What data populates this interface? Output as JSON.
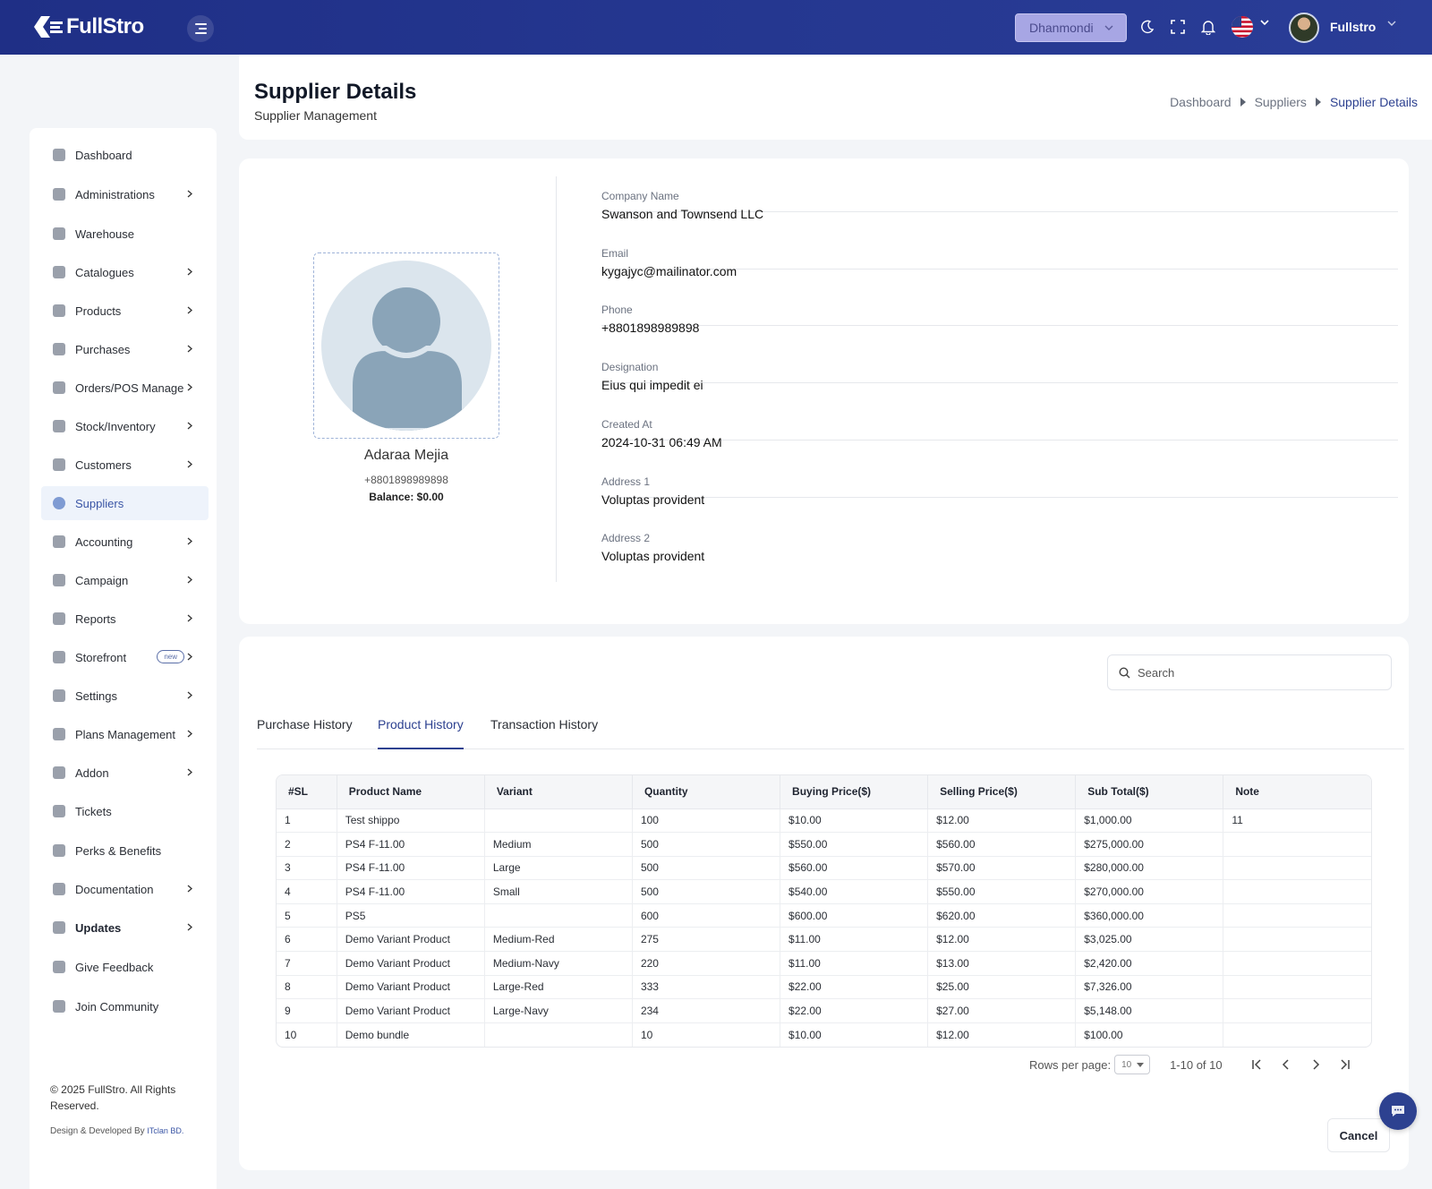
{
  "header": {
    "logo_text": "FullStro",
    "branch": "Dhanmondi",
    "user_name": "Fullstro",
    "icons": [
      "hamburger-icon",
      "moon-icon",
      "fullscreen-icon",
      "bell-icon",
      "us-flag-icon",
      "chevron-down-icon"
    ]
  },
  "page": {
    "title": "Supplier Details",
    "subtitle": "Supplier Management",
    "breadcrumb": [
      "Dashboard",
      "Suppliers",
      "Supplier Details"
    ]
  },
  "sidebar": {
    "items": [
      {
        "label": "Dashboard",
        "icon": "monitor-icon",
        "chevron": false
      },
      {
        "label": "Administrations",
        "icon": "user-icon",
        "chevron": true
      },
      {
        "label": "Warehouse",
        "icon": "warehouse-icon",
        "chevron": false
      },
      {
        "label": "Catalogues",
        "icon": "catalogue-icon",
        "chevron": true
      },
      {
        "label": "Products",
        "icon": "cart-icon",
        "chevron": true
      },
      {
        "label": "Purchases",
        "icon": "bag-icon",
        "chevron": true
      },
      {
        "label": "Orders/POS Manage",
        "icon": "orders-icon",
        "chevron": true
      },
      {
        "label": "Stock/Inventory",
        "icon": "box-icon",
        "chevron": true
      },
      {
        "label": "Customers",
        "icon": "users-icon",
        "chevron": true
      },
      {
        "label": "Suppliers",
        "icon": "supplier-icon",
        "chevron": false,
        "active": true
      },
      {
        "label": "Accounting",
        "icon": "ledger-icon",
        "chevron": true
      },
      {
        "label": "Campaign",
        "icon": "campaign-icon",
        "chevron": true
      },
      {
        "label": "Reports",
        "icon": "report-icon",
        "chevron": true
      },
      {
        "label": "Storefront",
        "icon": "store-icon",
        "chevron": true,
        "badge": "new"
      },
      {
        "label": "Settings",
        "icon": "gear-icon",
        "chevron": true
      },
      {
        "label": "Plans Management",
        "icon": "plan-icon",
        "chevron": true
      },
      {
        "label": "Addon",
        "icon": "addon-icon",
        "chevron": true
      },
      {
        "label": "Tickets",
        "icon": "ticket-icon",
        "chevron": false
      },
      {
        "label": "Perks & Benefits",
        "icon": "gift-icon",
        "chevron": false
      },
      {
        "label": "Documentation",
        "icon": "doc-icon",
        "chevron": true
      },
      {
        "label": "Updates",
        "icon": "updates-icon",
        "chevron": true,
        "bold": true
      },
      {
        "label": "Give Feedback",
        "icon": "feedback-icon",
        "chevron": false
      },
      {
        "label": "Join Community",
        "icon": "community-icon",
        "chevron": false
      }
    ],
    "copyright": "© 2025 FullStro. All Rights Reserved.",
    "credits_prefix": "Design & Developed By",
    "credits_brand": "ITclan BD."
  },
  "supplier": {
    "name": "Adaraa Mejia",
    "phone": "+8801898989898",
    "balance": "Balance: $0.00",
    "fields": [
      {
        "label": "Company Name",
        "value": "Swanson and Townsend LLC"
      },
      {
        "label": "Email",
        "value": "kygajyc@mailinator.com"
      },
      {
        "label": "Phone",
        "value": "+8801898989898"
      },
      {
        "label": "Designation",
        "value": "Eius qui impedit ei"
      },
      {
        "label": "Created At",
        "value": "2024-10-31 06:49 AM"
      },
      {
        "label": "Address 1",
        "value": "Voluptas provident"
      },
      {
        "label": "Address 2",
        "value": "Voluptas provident"
      }
    ]
  },
  "history": {
    "search_placeholder": "Search",
    "tabs": [
      {
        "label": "Purchase History",
        "active": false
      },
      {
        "label": "Product History",
        "active": true
      },
      {
        "label": "Transaction History",
        "active": false
      }
    ],
    "columns": [
      "#SL",
      "Product Name",
      "Variant",
      "Quantity",
      "Buying Price($)",
      "Selling Price($)",
      "Sub Total($)",
      "Note"
    ],
    "rows": [
      [
        "1",
        "Test shippo",
        "",
        "100",
        "$10.00",
        "$12.00",
        "$1,000.00",
        "11"
      ],
      [
        "2",
        "PS4 F-11.00",
        "Medium",
        "500",
        "$550.00",
        "$560.00",
        "$275,000.00",
        ""
      ],
      [
        "3",
        "PS4 F-11.00",
        "Large",
        "500",
        "$560.00",
        "$570.00",
        "$280,000.00",
        ""
      ],
      [
        "4",
        "PS4 F-11.00",
        "Small",
        "500",
        "$540.00",
        "$550.00",
        "$270,000.00",
        ""
      ],
      [
        "5",
        "PS5",
        "",
        "600",
        "$600.00",
        "$620.00",
        "$360,000.00",
        ""
      ],
      [
        "6",
        "Demo Variant Product",
        "Medium-Red",
        "275",
        "$11.00",
        "$12.00",
        "$3,025.00",
        ""
      ],
      [
        "7",
        "Demo Variant Product",
        "Medium-Navy",
        "220",
        "$11.00",
        "$13.00",
        "$2,420.00",
        ""
      ],
      [
        "8",
        "Demo Variant Product",
        "Large-Red",
        "333",
        "$22.00",
        "$25.00",
        "$7,326.00",
        ""
      ],
      [
        "9",
        "Demo Variant Product",
        "Large-Navy",
        "234",
        "$22.00",
        "$27.00",
        "$5,148.00",
        ""
      ],
      [
        "10",
        "Demo bundle",
        "",
        "10",
        "$10.00",
        "$12.00",
        "$100.00",
        ""
      ]
    ],
    "pagination": {
      "rows_per_page_label": "Rows per page:",
      "rows_per_page": "10",
      "range": "1-10 of 10"
    },
    "cancel_label": "Cancel"
  },
  "colors": {
    "header_bg": "#24368f",
    "accent": "#2d4190",
    "active_nav_bg": "#eef3fb",
    "branch_select_bg": "#a7a6e4"
  }
}
